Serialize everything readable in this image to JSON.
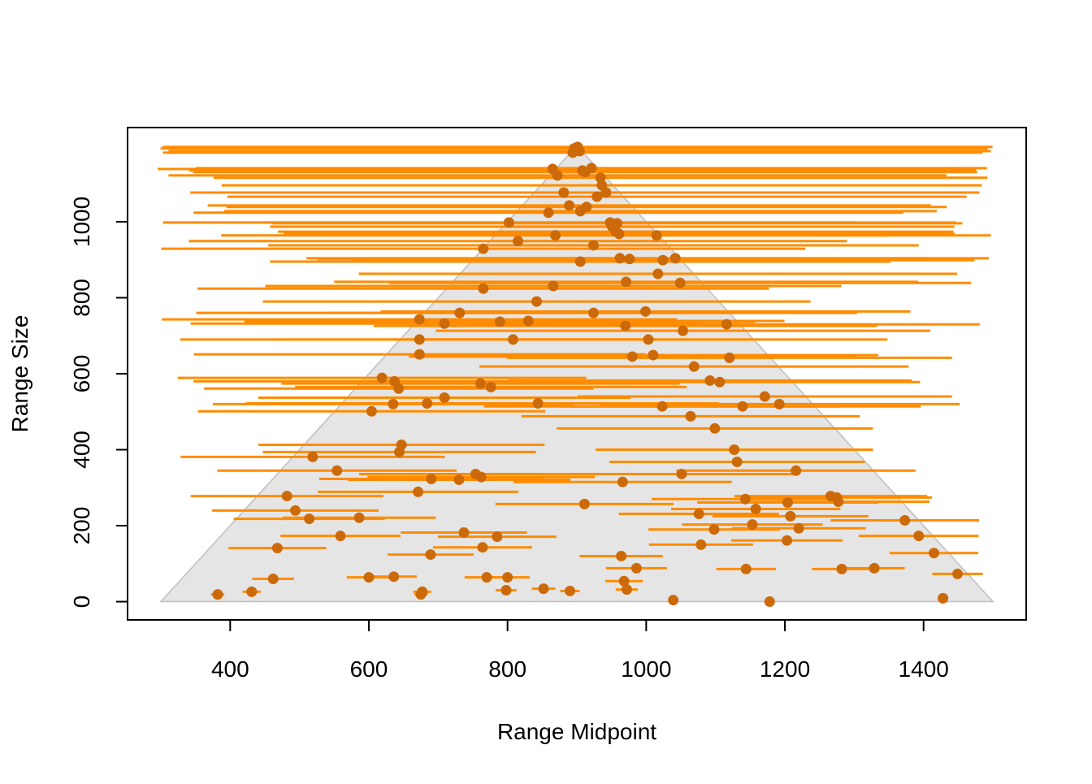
{
  "chart_data": {
    "type": "scatter",
    "xlabel": "Range Midpoint",
    "ylabel": "Range Size",
    "xlim": [
      252,
      1548
    ],
    "ylim": [
      -48,
      1248
    ],
    "xticks": [
      400,
      600,
      800,
      1000,
      1200,
      1400
    ],
    "yticks": [
      0,
      200,
      400,
      600,
      800,
      1000
    ],
    "bar_color": "#ff8c00",
    "point_color": "#cc6a0a",
    "triangle": {
      "x": [
        300,
        900,
        1500
      ],
      "y": [
        0,
        1200,
        0
      ],
      "color": "#e5e5e5"
    },
    "x": [
      382,
      431,
      462,
      468,
      482,
      494,
      514,
      519,
      554,
      559,
      586,
      600,
      604,
      619,
      637,
      636,
      635,
      643,
      647,
      644,
      671,
      673,
      673,
      673,
      675,
      677,
      689,
      684,
      690,
      709,
      709,
      730,
      731,
      737,
      754,
      761,
      762,
      765,
      765,
      764,
      770,
      776,
      785,
      789,
      798,
      800,
      802,
      808,
      815,
      830,
      842,
      844,
      852,
      859,
      865,
      866,
      869,
      872,
      881,
      889,
      890,
      894,
      896,
      901,
      904,
      905,
      905,
      908,
      911,
      912,
      914,
      921,
      924,
      924,
      929,
      934,
      936,
      942,
      948,
      951,
      956,
      958,
      961,
      962,
      964,
      966,
      968,
      970,
      971,
      972,
      976,
      980,
      986,
      999,
      1003,
      1010,
      1015,
      1017,
      1023,
      1024,
      1039,
      1042,
      1049,
      1051,
      1053,
      1064,
      1069,
      1076,
      1079,
      1092,
      1099,
      1106,
      1116,
      1120,
      1127,
      1131,
      1144,
      1171,
      1178,
      1192,
      1204,
      1216,
      1266,
      1275,
      1282,
      1373,
      1393,
      1415,
      1428,
      1449,
      1329,
      1203,
      1220,
      1208,
      1143,
      1153,
      1158,
      1139,
      1098,
      1277
    ],
    "values": [
      19,
      26,
      60,
      141,
      278,
      240,
      218,
      381,
      345,
      173,
      221,
      64,
      501,
      589,
      580,
      66,
      520,
      561,
      413,
      394,
      289,
      743,
      690,
      651,
      19,
      26,
      124,
      522,
      323,
      537,
      732,
      321,
      760,
      182,
      336,
      574,
      328,
      929,
      824,
      143,
      64,
      565,
      171,
      737,
      30,
      64,
      998,
      690,
      949,
      739,
      790,
      522,
      34,
      1024,
      1139,
      831,
      964,
      1122,
      1077,
      1043,
      28,
      1182,
      1193,
      1197,
      1186,
      1028,
      895,
      1135,
      257,
      1131,
      1039,
      1141,
      938,
      760,
      1066,
      1116,
      1096,
      1077,
      998,
      987,
      974,
      996,
      968,
      904,
      120,
      315,
      54,
      726,
      842,
      32,
      902,
      645,
      88,
      764,
      690,
      649,
      964,
      863,
      514,
      899,
      4,
      904,
      839,
      336,
      713,
      488,
      619,
      231,
      150,
      582,
      456,
      578,
      730,
      642,
      400,
      368,
      86,
      540,
      0,
      520,
      261,
      345,
      278,
      274,
      86,
      214,
      173,
      128,
      9,
      73,
      88,
      161,
      193,
      225,
      270,
      203,
      244,
      514,
      190,
      263
    ]
  }
}
